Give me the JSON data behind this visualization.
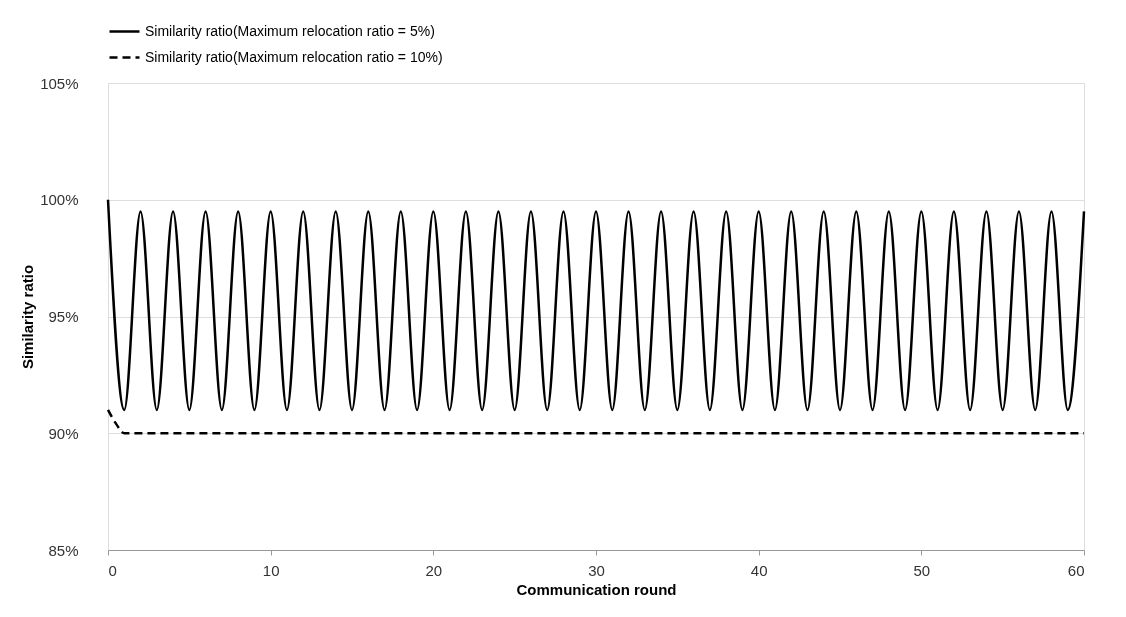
{
  "chart_data": {
    "type": "line",
    "xlabel": "Communication round",
    "ylabel": "Similarity ratio",
    "xlim": [
      0,
      60
    ],
    "xticks": [
      0,
      10,
      20,
      30,
      40,
      50,
      60
    ],
    "ylim": [
      85,
      105
    ],
    "yticks": [
      {
        "value": 85,
        "label": "85%"
      },
      {
        "value": 90,
        "label": "90%"
      },
      {
        "value": 95,
        "label": "95%"
      },
      {
        "value": 100,
        "label": "100%"
      },
      {
        "value": 105,
        "label": "105%"
      }
    ],
    "grid": "y",
    "legend": "top",
    "marker": "none",
    "series": [
      {
        "name": "Similarity ratio(Maximum relocation ratio = 5%)",
        "color": "#000000",
        "line_style": "solid",
        "x": [
          0,
          1,
          2,
          3,
          4,
          5,
          6,
          7,
          8,
          9,
          10,
          11,
          12,
          13,
          14,
          15,
          16,
          17,
          18,
          19,
          20,
          21,
          22,
          23,
          24,
          25,
          26,
          27,
          28,
          29,
          30,
          31,
          32,
          33,
          34,
          35,
          36,
          37,
          38,
          39,
          40,
          41,
          42,
          43,
          44,
          45,
          46,
          47,
          48,
          49,
          50,
          51,
          52,
          53,
          54,
          55,
          56,
          57,
          58,
          59,
          60
        ],
        "values": [
          100,
          91,
          99.5,
          91,
          99.5,
          91,
          99.5,
          91,
          99.5,
          91,
          99.5,
          91,
          99.5,
          91,
          99.5,
          91,
          99.5,
          91,
          99.5,
          91,
          99.5,
          91,
          99.5,
          91,
          99.5,
          91,
          99.5,
          91,
          99.5,
          91,
          99.5,
          91,
          99.5,
          91,
          99.5,
          91,
          99.5,
          91,
          99.5,
          91,
          99.5,
          91,
          99.5,
          91,
          99.5,
          91,
          99.5,
          91,
          99.5,
          91,
          99.5,
          91,
          99.5,
          91,
          99.5,
          91,
          99.5,
          91,
          99.5,
          91,
          99.5
        ]
      },
      {
        "name": "Similarity ratio(Maximum relocation ratio = 10%)",
        "color": "#000000",
        "line_style": "dashed",
        "x": [
          0,
          0.5,
          1,
          60
        ],
        "values": [
          91,
          90.4,
          90,
          90
        ]
      }
    ]
  }
}
